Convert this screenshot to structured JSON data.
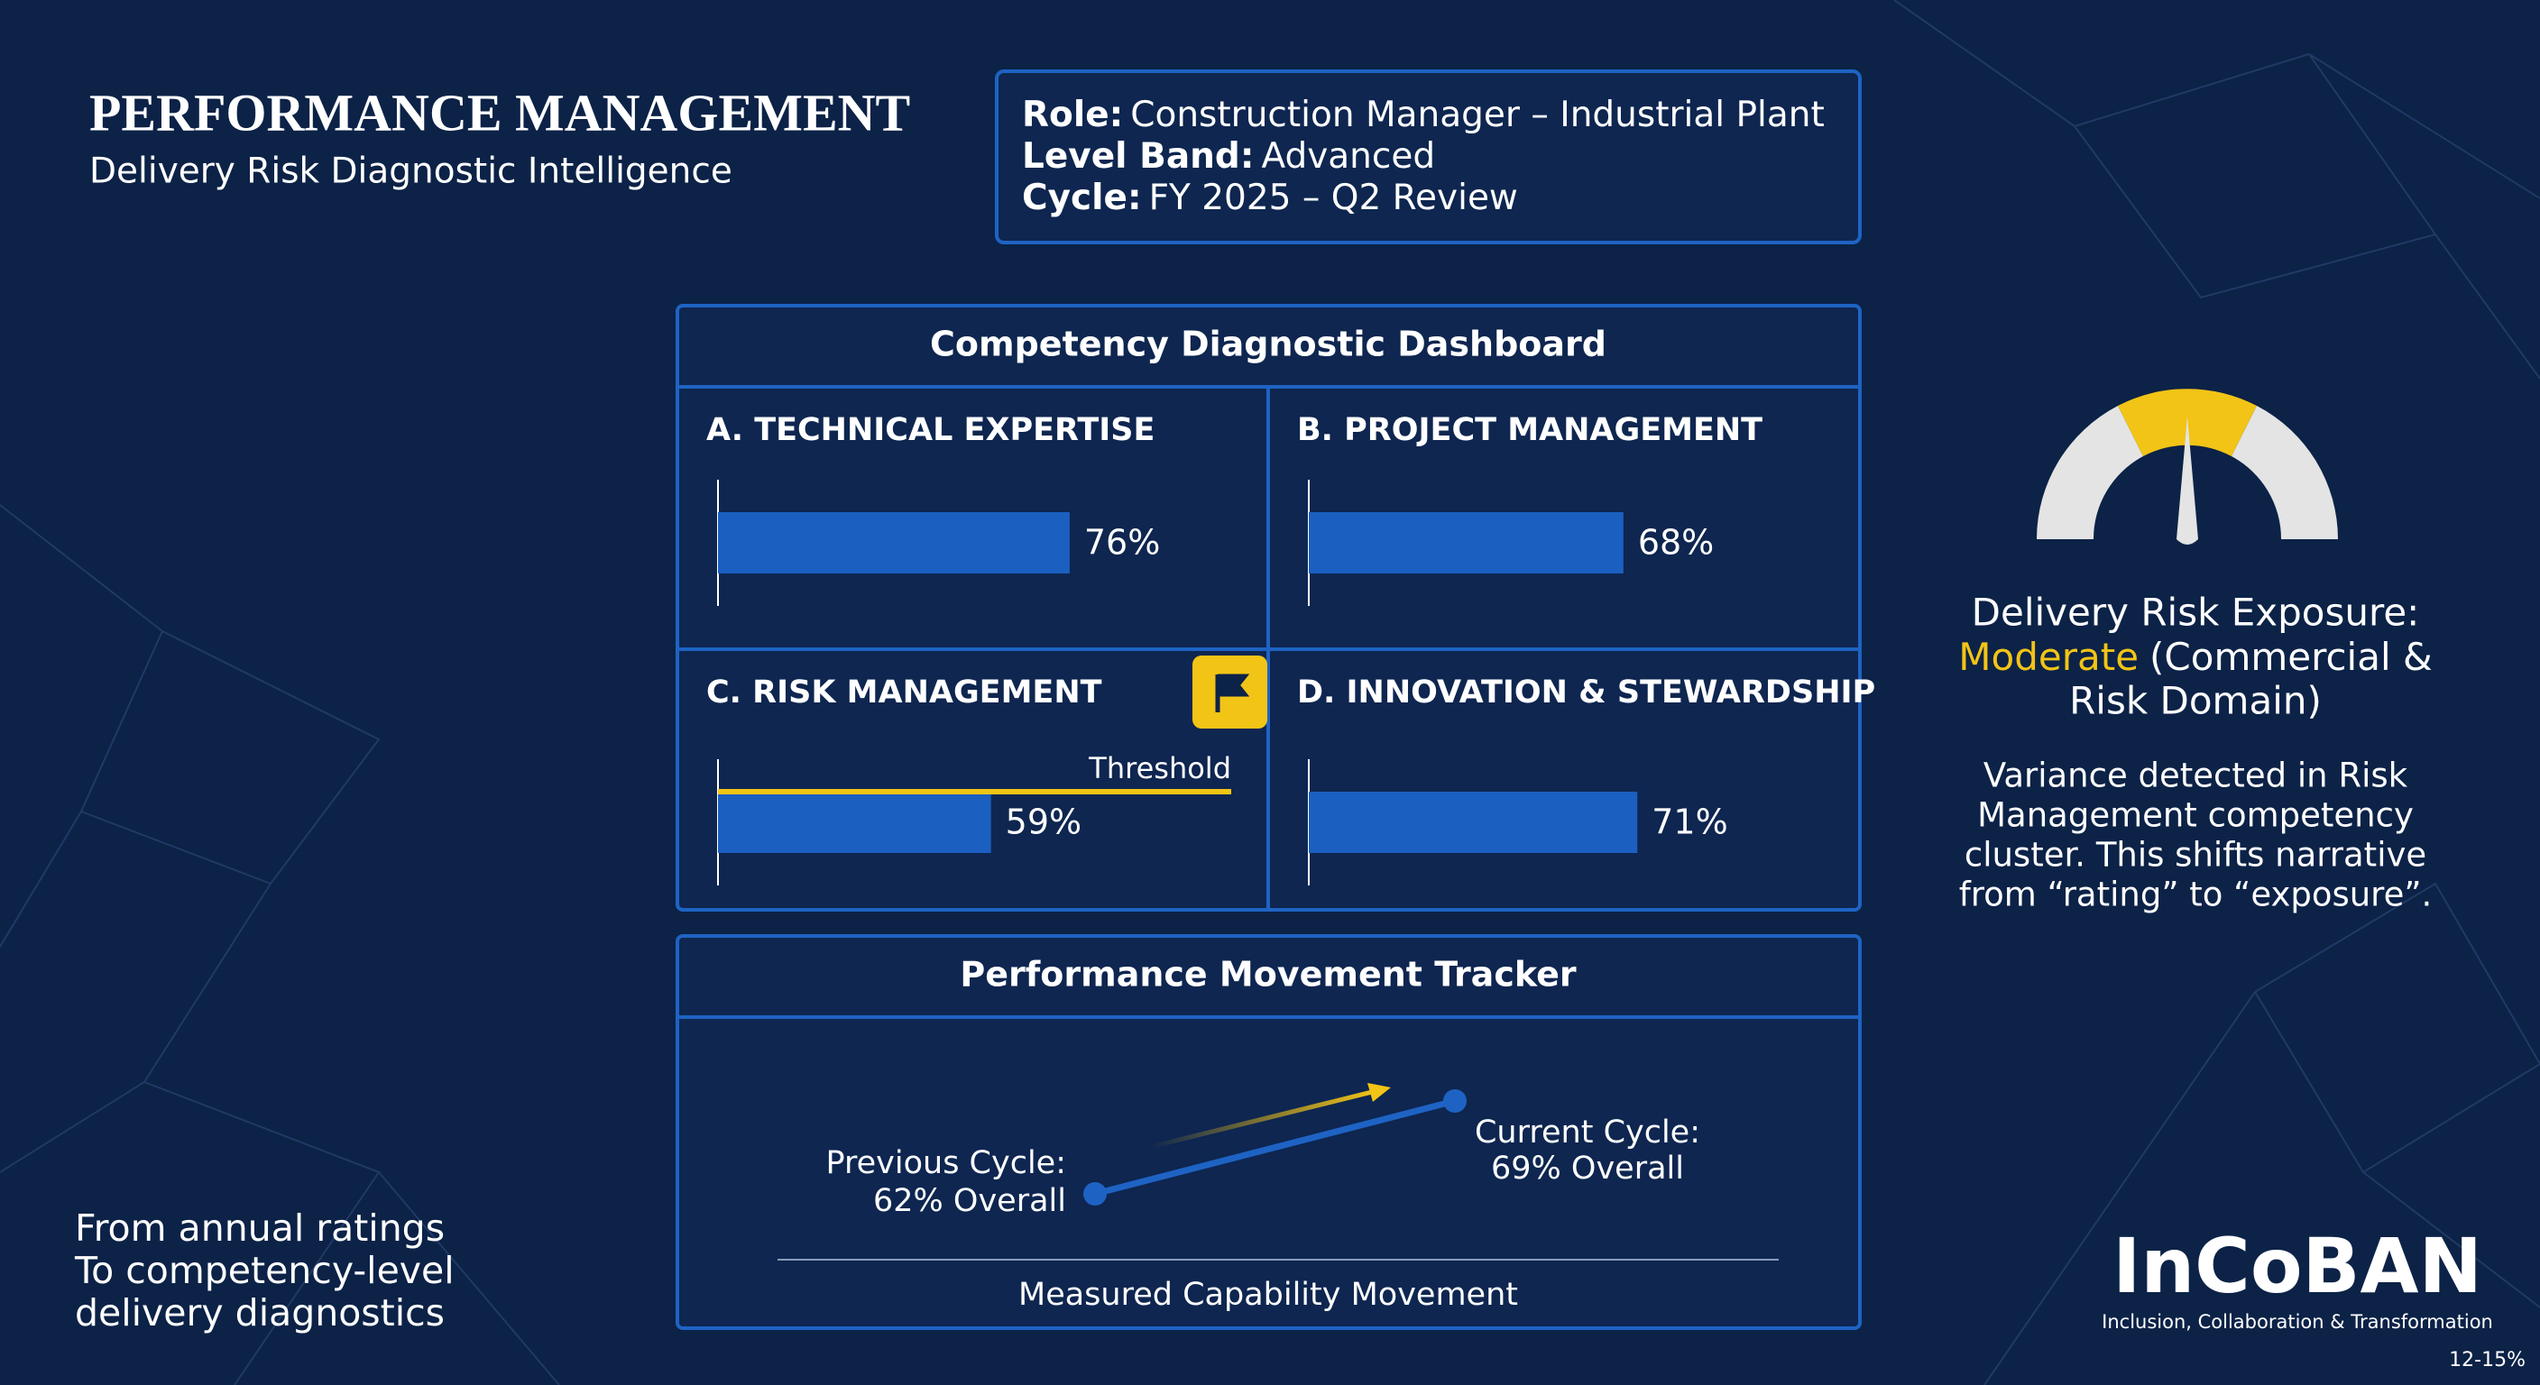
{
  "header": {
    "title": "PERFORMANCE MANAGEMENT",
    "subtitle": "Delivery Risk Diagnostic Intelligence"
  },
  "info": {
    "rows": [
      {
        "label": "Role:",
        "text": "Construction Manager – Industrial Plant"
      },
      {
        "label": "Level Band:",
        "text": "Advanced"
      },
      {
        "label": "Cycle:",
        "text": "FY 2025 – Q2 Review"
      }
    ]
  },
  "dashboard": {
    "title": "Competency Diagnostic Dashboard",
    "panels": [
      {
        "name": "A. TECHNICAL EXPERTISE",
        "value": 76,
        "value_label": "76%"
      },
      {
        "name": "B. PROJECT MANAGEMENT",
        "value": 68,
        "value_label": "68%"
      },
      {
        "name": "C. RISK MANAGEMENT",
        "value": 59,
        "value_label": "59%",
        "flagged": true
      },
      {
        "name": "D. INNOVATION & STEWARDSHIP",
        "value": 71,
        "value_label": "71%"
      }
    ],
    "threshold_label": "Threshold"
  },
  "tracker": {
    "title": "Performance Movement Tracker",
    "previous": [
      "Previous Cycle:",
      "62% Overall"
    ],
    "current": [
      "Current Cycle:",
      "69% Overall"
    ],
    "caption": "Measured Capability Movement"
  },
  "risk": {
    "title": "Delivery Risk Exposure:",
    "level": "Moderate",
    "level_rest": [
      "(Commercial &",
      "Risk Domain)"
    ],
    "note": [
      "Variance detected in Risk",
      "Management competency",
      "cluster. This shifts narrative",
      "from “rating” to “exposure”."
    ]
  },
  "footer_note": [
    "From annual ratings",
    "To competency-level",
    "delivery diagnostics"
  ],
  "logo": {
    "name": "InCoBAN",
    "tagline": "Inclusion, Collaboration & Transformation"
  },
  "corner_label": "12-15%"
}
